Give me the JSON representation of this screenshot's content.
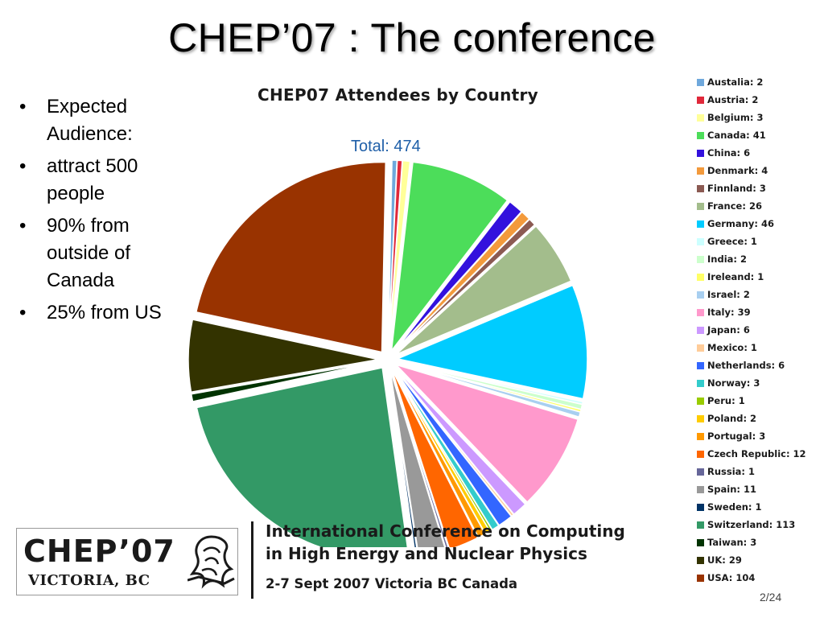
{
  "slide": {
    "title": "CHEP’07 : The conference",
    "bullets": [
      "Expected Audience:",
      "attract 500 people",
      "90% from outside of Canada",
      "25% from US"
    ],
    "bullet_symbol": "•",
    "page_number": "2/24"
  },
  "chart_data": {
    "type": "pie",
    "title": "CHEP07 Attendees by Country",
    "annotation": "Total: 474",
    "legend_placement": "right",
    "slices": [
      {
        "label": "Austalia: 2",
        "value": 2,
        "color": "#6fa8dc"
      },
      {
        "label": "Austria: 2",
        "value": 2,
        "color": "#e0283a"
      },
      {
        "label": "Belgium: 3",
        "value": 3,
        "color": "#ffff99"
      },
      {
        "label": "Canada: 41",
        "value": 41,
        "color": "#4cdd5a"
      },
      {
        "label": "China: 6",
        "value": 6,
        "color": "#3311dd"
      },
      {
        "label": "Denmark: 4",
        "value": 4,
        "color": "#f39a3c"
      },
      {
        "label": "Finnland: 3",
        "value": 3,
        "color": "#8b5a52"
      },
      {
        "label": "France: 26",
        "value": 26,
        "color": "#a3bd8c"
      },
      {
        "label": "Germany: 46",
        "value": 46,
        "color": "#00ccff"
      },
      {
        "label": "Greece: 1",
        "value": 1,
        "color": "#ccffff"
      },
      {
        "label": "India: 2",
        "value": 2,
        "color": "#ccffcc"
      },
      {
        "label": "Ireleand: 1",
        "value": 1,
        "color": "#ffff66"
      },
      {
        "label": "Israel: 2",
        "value": 2,
        "color": "#a8cff0"
      },
      {
        "label": "Italy: 39",
        "value": 39,
        "color": "#ff99cc"
      },
      {
        "label": "Japan: 6",
        "value": 6,
        "color": "#cc99ff"
      },
      {
        "label": "Mexico: 1",
        "value": 1,
        "color": "#ffcc99"
      },
      {
        "label": "Netherlands: 6",
        "value": 6,
        "color": "#3366ff"
      },
      {
        "label": "Norway: 3",
        "value": 3,
        "color": "#33cccc"
      },
      {
        "label": "Peru: 1",
        "value": 1,
        "color": "#99cc00"
      },
      {
        "label": "Poland: 2",
        "value": 2,
        "color": "#ffcc00"
      },
      {
        "label": "Portugal: 3",
        "value": 3,
        "color": "#ff9900"
      },
      {
        "label": "Czech Republic: 12",
        "value": 12,
        "color": "#ff6600"
      },
      {
        "label": "Russia: 1",
        "value": 1,
        "color": "#666699"
      },
      {
        "label": "Spain: 11",
        "value": 11,
        "color": "#999999"
      },
      {
        "label": "Sweden: 1",
        "value": 1,
        "color": "#003366"
      },
      {
        "label": "Switzerland: 113",
        "value": 113,
        "color": "#339966"
      },
      {
        "label": "Taiwan: 3",
        "value": 3,
        "color": "#003300"
      },
      {
        "label": "UK: 29",
        "value": 29,
        "color": "#333300"
      },
      {
        "label": "USA: 104",
        "value": 104,
        "color": "#993300"
      }
    ]
  },
  "footer": {
    "logo_text": "CHEP’07",
    "logo_subtext": "VICTORIA, BC",
    "conference_line1": "International Conference on Computing",
    "conference_line2": "in High Energy and Nuclear Physics",
    "conference_line3": "2-7 Sept 2007 Victoria BC Canada"
  },
  "icons": {
    "logo_emblem": "dragon-emblem-icon"
  }
}
